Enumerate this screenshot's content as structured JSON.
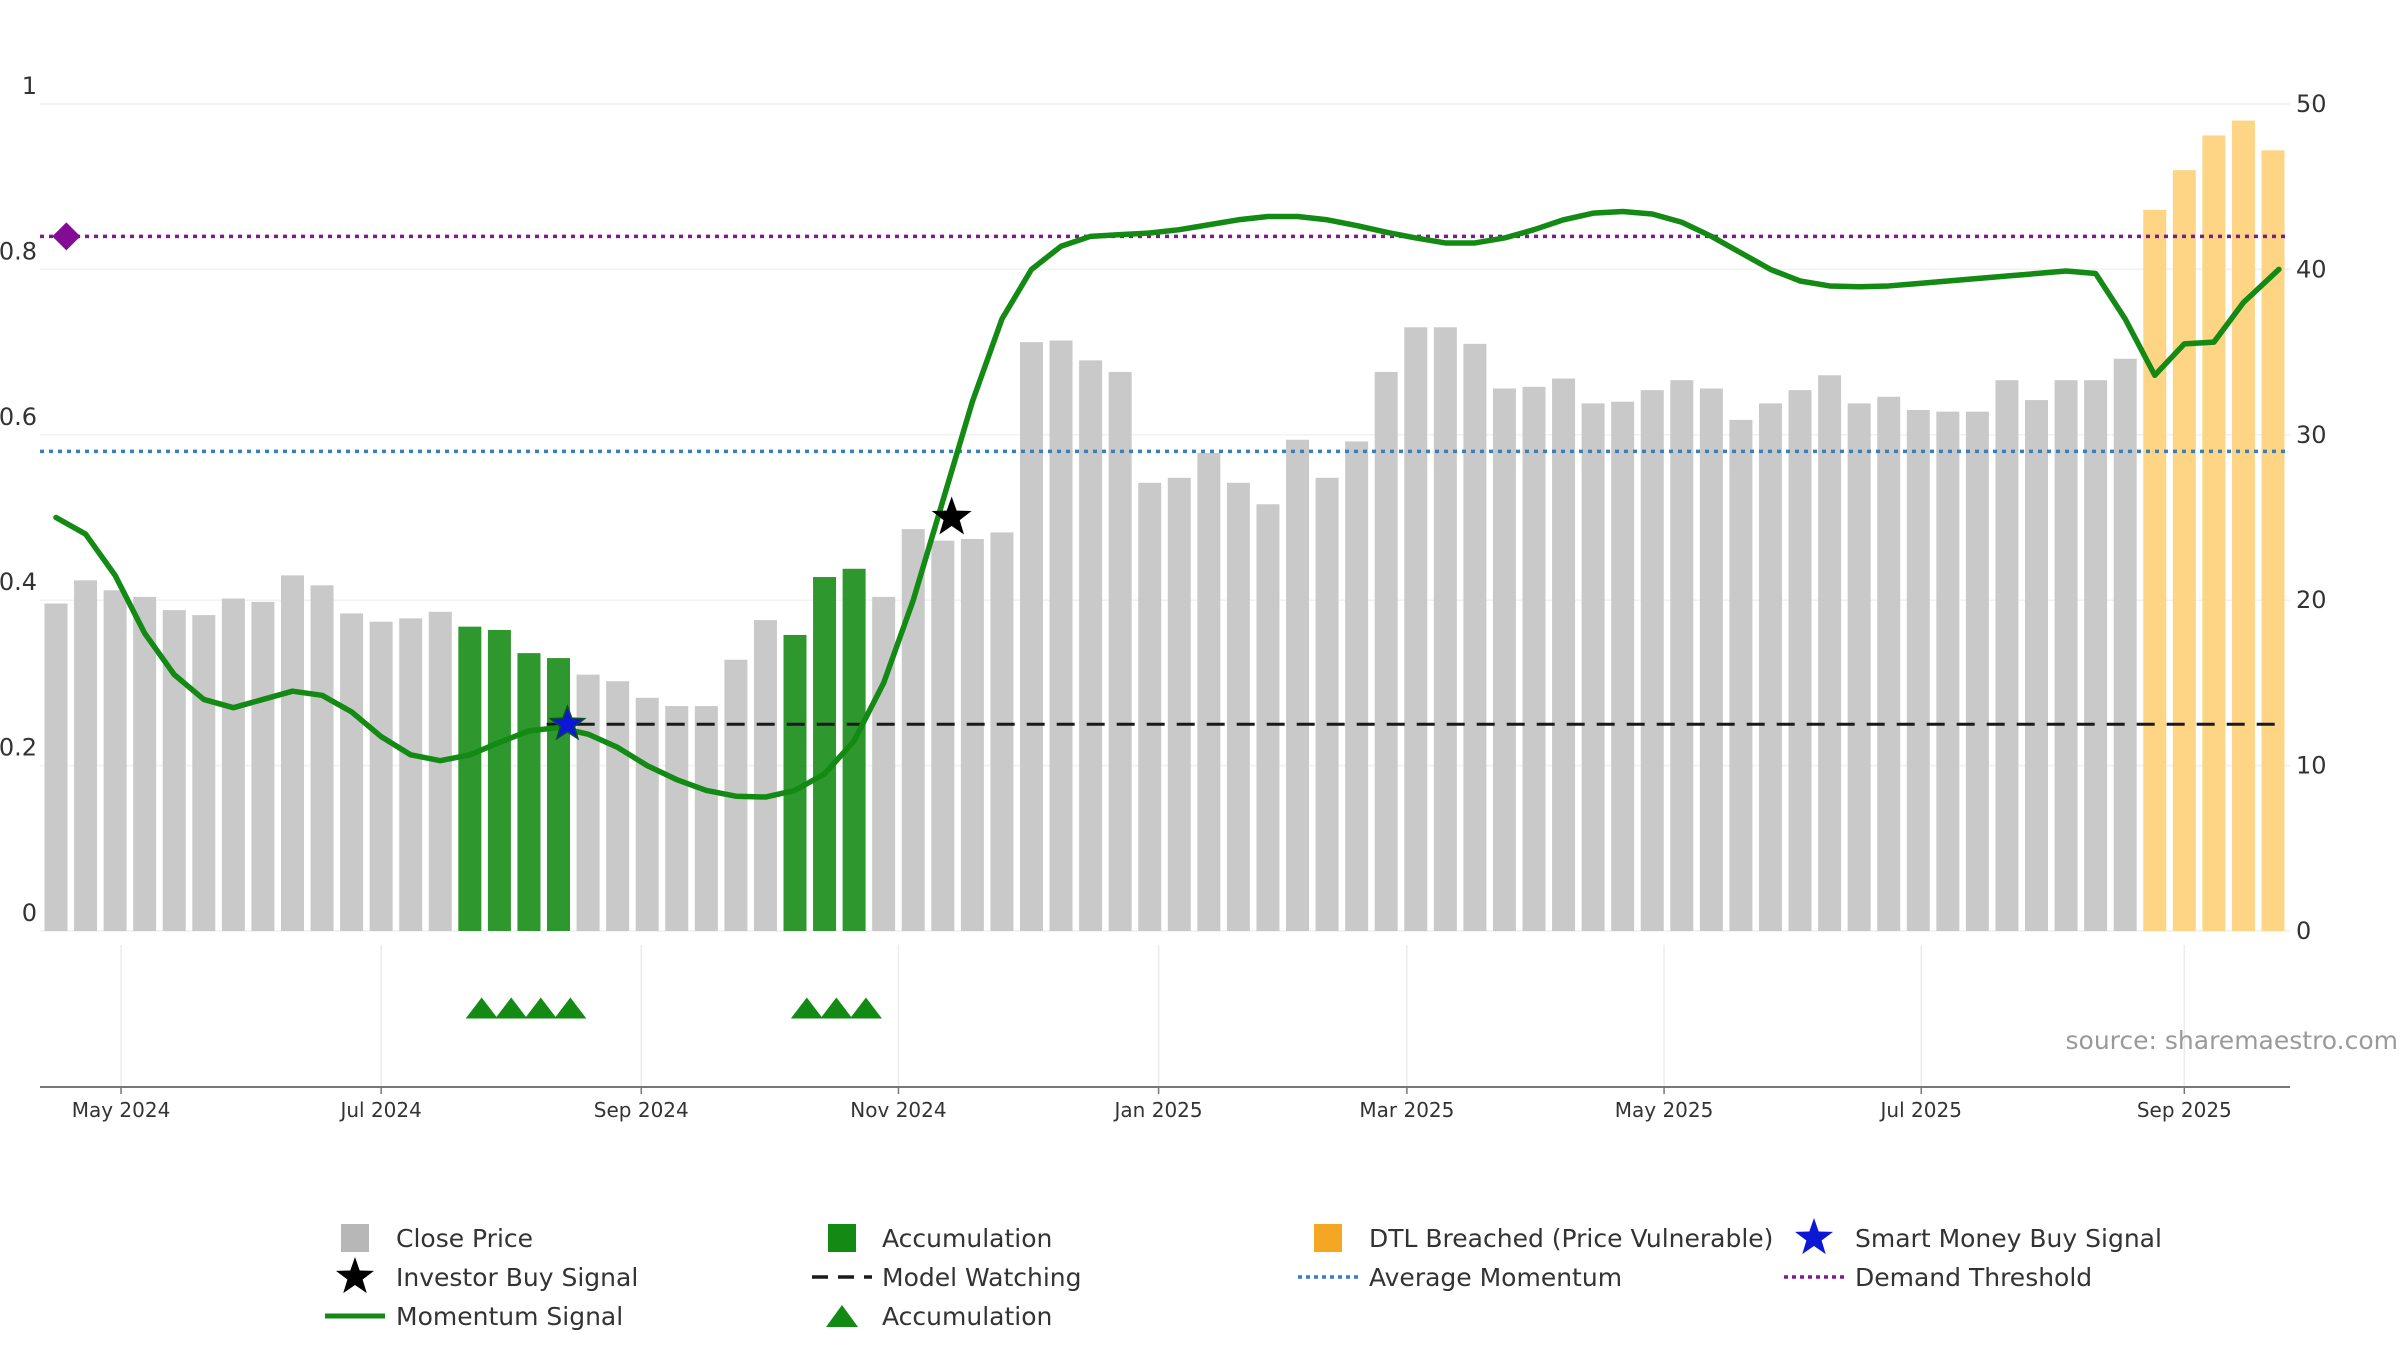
{
  "chart_data": {
    "type": "bar",
    "title": "",
    "source": "source: sharemaestro.com",
    "colors": {
      "close": "#c9c9c9",
      "accumulation": "#2e972e",
      "dtl": "#fdd585",
      "dtl_legend": "#f5a623",
      "momentum": "#138a13",
      "investor_star": "#000000",
      "smart_star": "#0b18d6",
      "model_watching": "#1a1a1a",
      "avg_momentum": "#3a7fb8",
      "demand": "#7e1a8c",
      "triangle": "#138a13",
      "diamond": "#840b96"
    },
    "left_axis": {
      "ylim": [
        0,
        1
      ],
      "ticks": [
        0,
        0.2,
        0.4,
        0.6,
        0.8,
        1
      ],
      "tick_labels": [
        "0",
        "0.2",
        "0.4",
        "0.6",
        "0.8",
        "1"
      ]
    },
    "right_axis": {
      "ylim": [
        0,
        50
      ],
      "ticks": [
        0,
        10,
        20,
        30,
        40,
        50
      ],
      "tick_labels": [
        "0",
        "10",
        "20",
        "30",
        "40",
        "50"
      ]
    },
    "x_ticks": [
      {
        "label": "May 2024",
        "bar": 2.2
      },
      {
        "label": "Jul 2024",
        "bar": 11.0
      },
      {
        "label": "Sep 2024",
        "bar": 19.8
      },
      {
        "label": "Nov 2024",
        "bar": 28.5
      },
      {
        "label": "Jan 2025",
        "bar": 37.3
      },
      {
        "label": "Mar 2025",
        "bar": 45.7
      },
      {
        "label": "May 2025",
        "bar": 54.4
      },
      {
        "label": "Jul 2025",
        "bar": 63.1
      },
      {
        "label": "Sep 2025",
        "bar": 72.0
      }
    ],
    "bars": [
      {
        "v": 19.8,
        "t": "close"
      },
      {
        "v": 21.2,
        "t": "close"
      },
      {
        "v": 20.6,
        "t": "close"
      },
      {
        "v": 20.2,
        "t": "close"
      },
      {
        "v": 19.4,
        "t": "close"
      },
      {
        "v": 19.1,
        "t": "close"
      },
      {
        "v": 20.1,
        "t": "close"
      },
      {
        "v": 19.9,
        "t": "close"
      },
      {
        "v": 21.5,
        "t": "close"
      },
      {
        "v": 20.9,
        "t": "close"
      },
      {
        "v": 19.2,
        "t": "close"
      },
      {
        "v": 18.7,
        "t": "close"
      },
      {
        "v": 18.9,
        "t": "close"
      },
      {
        "v": 19.3,
        "t": "close"
      },
      {
        "v": 18.4,
        "t": "acc"
      },
      {
        "v": 18.2,
        "t": "acc"
      },
      {
        "v": 16.8,
        "t": "acc"
      },
      {
        "v": 16.5,
        "t": "acc"
      },
      {
        "v": 15.5,
        "t": "close"
      },
      {
        "v": 15.1,
        "t": "close"
      },
      {
        "v": 14.1,
        "t": "close"
      },
      {
        "v": 13.6,
        "t": "close"
      },
      {
        "v": 13.6,
        "t": "close"
      },
      {
        "v": 16.4,
        "t": "close"
      },
      {
        "v": 18.8,
        "t": "close"
      },
      {
        "v": 17.9,
        "t": "acc"
      },
      {
        "v": 21.4,
        "t": "acc"
      },
      {
        "v": 21.9,
        "t": "acc"
      },
      {
        "v": 20.2,
        "t": "close"
      },
      {
        "v": 24.3,
        "t": "close"
      },
      {
        "v": 23.6,
        "t": "close"
      },
      {
        "v": 23.7,
        "t": "close"
      },
      {
        "v": 24.1,
        "t": "close"
      },
      {
        "v": 35.6,
        "t": "close"
      },
      {
        "v": 35.7,
        "t": "close"
      },
      {
        "v": 34.5,
        "t": "close"
      },
      {
        "v": 33.8,
        "t": "close"
      },
      {
        "v": 27.1,
        "t": "close"
      },
      {
        "v": 27.4,
        "t": "close"
      },
      {
        "v": 28.9,
        "t": "close"
      },
      {
        "v": 27.1,
        "t": "close"
      },
      {
        "v": 25.8,
        "t": "close"
      },
      {
        "v": 29.7,
        "t": "close"
      },
      {
        "v": 27.4,
        "t": "close"
      },
      {
        "v": 29.6,
        "t": "close"
      },
      {
        "v": 33.8,
        "t": "close"
      },
      {
        "v": 36.5,
        "t": "close"
      },
      {
        "v": 36.5,
        "t": "close"
      },
      {
        "v": 35.5,
        "t": "close"
      },
      {
        "v": 32.8,
        "t": "close"
      },
      {
        "v": 32.9,
        "t": "close"
      },
      {
        "v": 33.4,
        "t": "close"
      },
      {
        "v": 31.9,
        "t": "close"
      },
      {
        "v": 32.0,
        "t": "close"
      },
      {
        "v": 32.7,
        "t": "close"
      },
      {
        "v": 33.3,
        "t": "close"
      },
      {
        "v": 32.8,
        "t": "close"
      },
      {
        "v": 30.9,
        "t": "close"
      },
      {
        "v": 31.9,
        "t": "close"
      },
      {
        "v": 32.7,
        "t": "close"
      },
      {
        "v": 33.6,
        "t": "close"
      },
      {
        "v": 31.9,
        "t": "close"
      },
      {
        "v": 32.3,
        "t": "close"
      },
      {
        "v": 31.5,
        "t": "close"
      },
      {
        "v": 31.4,
        "t": "close"
      },
      {
        "v": 31.4,
        "t": "close"
      },
      {
        "v": 33.3,
        "t": "close"
      },
      {
        "v": 32.1,
        "t": "close"
      },
      {
        "v": 33.3,
        "t": "close"
      },
      {
        "v": 33.3,
        "t": "close"
      },
      {
        "v": 34.6,
        "t": "close"
      },
      {
        "v": 43.6,
        "t": "dtl"
      },
      {
        "v": 46.0,
        "t": "dtl"
      },
      {
        "v": 48.1,
        "t": "dtl"
      },
      {
        "v": 49.0,
        "t": "dtl"
      },
      {
        "v": 47.2,
        "t": "dtl"
      }
    ],
    "momentum": [
      {
        "x": 0,
        "y": 0.5
      },
      {
        "x": 1,
        "y": 0.48
      },
      {
        "x": 2,
        "y": 0.43
      },
      {
        "x": 3,
        "y": 0.36
      },
      {
        "x": 4,
        "y": 0.31
      },
      {
        "x": 5,
        "y": 0.28
      },
      {
        "x": 6,
        "y": 0.27
      },
      {
        "x": 7,
        "y": 0.28
      },
      {
        "x": 8,
        "y": 0.29
      },
      {
        "x": 9,
        "y": 0.285
      },
      {
        "x": 10,
        "y": 0.265
      },
      {
        "x": 11,
        "y": 0.235
      },
      {
        "x": 12,
        "y": 0.213
      },
      {
        "x": 13,
        "y": 0.206
      },
      {
        "x": 14,
        "y": 0.213
      },
      {
        "x": 15,
        "y": 0.228
      },
      {
        "x": 16,
        "y": 0.242
      },
      {
        "x": 17,
        "y": 0.246
      },
      {
        "x": 18,
        "y": 0.238
      },
      {
        "x": 19,
        "y": 0.222
      },
      {
        "x": 20,
        "y": 0.2
      },
      {
        "x": 21,
        "y": 0.183
      },
      {
        "x": 22,
        "y": 0.17
      },
      {
        "x": 23,
        "y": 0.163
      },
      {
        "x": 24,
        "y": 0.162
      },
      {
        "x": 25,
        "y": 0.17
      },
      {
        "x": 26,
        "y": 0.19
      },
      {
        "x": 27,
        "y": 0.23
      },
      {
        "x": 28,
        "y": 0.3
      },
      {
        "x": 29,
        "y": 0.4
      },
      {
        "x": 30,
        "y": 0.52
      },
      {
        "x": 31,
        "y": 0.64
      },
      {
        "x": 32,
        "y": 0.74
      },
      {
        "x": 33,
        "y": 0.8
      },
      {
        "x": 34,
        "y": 0.828
      },
      {
        "x": 35,
        "y": 0.84
      },
      {
        "x": 36,
        "y": 0.842
      },
      {
        "x": 37,
        "y": 0.844
      },
      {
        "x": 38,
        "y": 0.848
      },
      {
        "x": 39,
        "y": 0.854
      },
      {
        "x": 40,
        "y": 0.86
      },
      {
        "x": 41,
        "y": 0.864
      },
      {
        "x": 42,
        "y": 0.864
      },
      {
        "x": 43,
        "y": 0.86
      },
      {
        "x": 44,
        "y": 0.853
      },
      {
        "x": 45,
        "y": 0.845
      },
      {
        "x": 46,
        "y": 0.838
      },
      {
        "x": 47,
        "y": 0.832
      },
      {
        "x": 48,
        "y": 0.832
      },
      {
        "x": 49,
        "y": 0.838
      },
      {
        "x": 50,
        "y": 0.848
      },
      {
        "x": 51,
        "y": 0.86
      },
      {
        "x": 52,
        "y": 0.868
      },
      {
        "x": 53,
        "y": 0.87
      },
      {
        "x": 54,
        "y": 0.867
      },
      {
        "x": 55,
        "y": 0.857
      },
      {
        "x": 56,
        "y": 0.84
      },
      {
        "x": 57,
        "y": 0.82
      },
      {
        "x": 58,
        "y": 0.8
      },
      {
        "x": 59,
        "y": 0.786
      },
      {
        "x": 60,
        "y": 0.78
      },
      {
        "x": 61,
        "y": 0.779
      },
      {
        "x": 62,
        "y": 0.78
      },
      {
        "x": 63,
        "y": 0.783
      },
      {
        "x": 64,
        "y": 0.786
      },
      {
        "x": 65,
        "y": 0.789
      },
      {
        "x": 66,
        "y": 0.792
      },
      {
        "x": 67,
        "y": 0.795
      },
      {
        "x": 68,
        "y": 0.798
      },
      {
        "x": 69,
        "y": 0.795
      },
      {
        "x": 70,
        "y": 0.74
      },
      {
        "x": 71,
        "y": 0.672
      },
      {
        "x": 72,
        "y": 0.71
      },
      {
        "x": 73,
        "y": 0.712
      },
      {
        "x": 74,
        "y": 0.76
      },
      {
        "x": 75.2,
        "y": 0.8
      }
    ],
    "average_momentum": 0.58,
    "demand_threshold": 0.84,
    "model_watching_level": 0.25,
    "model_watching_from_bar": 16.6,
    "investor_buy_signals": [
      {
        "x": 30.3,
        "y": 0.5
      }
    ],
    "smart_money_buy_signals": [
      {
        "x": 17.3,
        "y": 0.25
      }
    ],
    "demand_diamond": {
      "x": 0.35,
      "y": 0.84
    },
    "accumulation_triangles": [
      14.4,
      15.4,
      16.4,
      17.4,
      25.4,
      26.4,
      27.4
    ],
    "legend": [
      {
        "label": "Close Price",
        "marker": "square-close"
      },
      {
        "label": "Accumulation",
        "marker": "square-acc"
      },
      {
        "label": "DTL Breached (Price Vulnerable)",
        "marker": "square-dtl"
      },
      {
        "label": "Smart Money Buy Signal",
        "marker": "star-blue"
      },
      {
        "label": "Investor Buy Signal",
        "marker": "star-black"
      },
      {
        "label": "Model Watching",
        "marker": "dash-black"
      },
      {
        "label": "Average Momentum",
        "marker": "dot-blue"
      },
      {
        "label": "Demand Threshold",
        "marker": "dot-purple"
      },
      {
        "label": "Momentum Signal",
        "marker": "line-green"
      },
      {
        "label": "Accumulation",
        "marker": "triangle-green"
      }
    ]
  }
}
